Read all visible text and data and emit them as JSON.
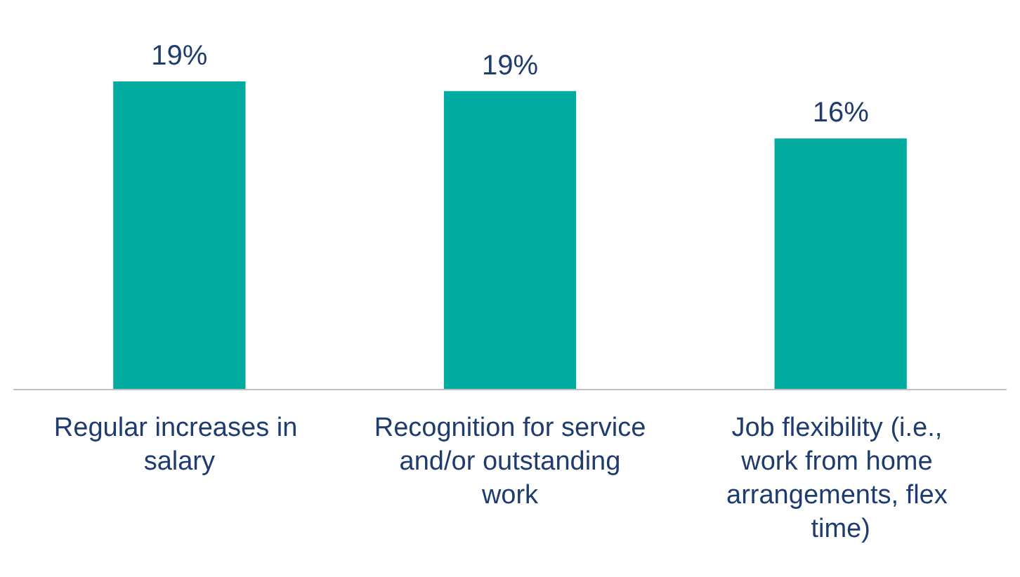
{
  "chart_data": {
    "type": "bar",
    "categories": [
      "Regular increases in salary",
      "Recognition for service and/or outstanding work",
      "Job flexibility (i.e., work from home arrangements, flex time)"
    ],
    "values": [
      19.4,
      18.8,
      15.8
    ],
    "value_labels": [
      "19%",
      "19%",
      "16%"
    ],
    "color": "#00ac9f"
  }
}
